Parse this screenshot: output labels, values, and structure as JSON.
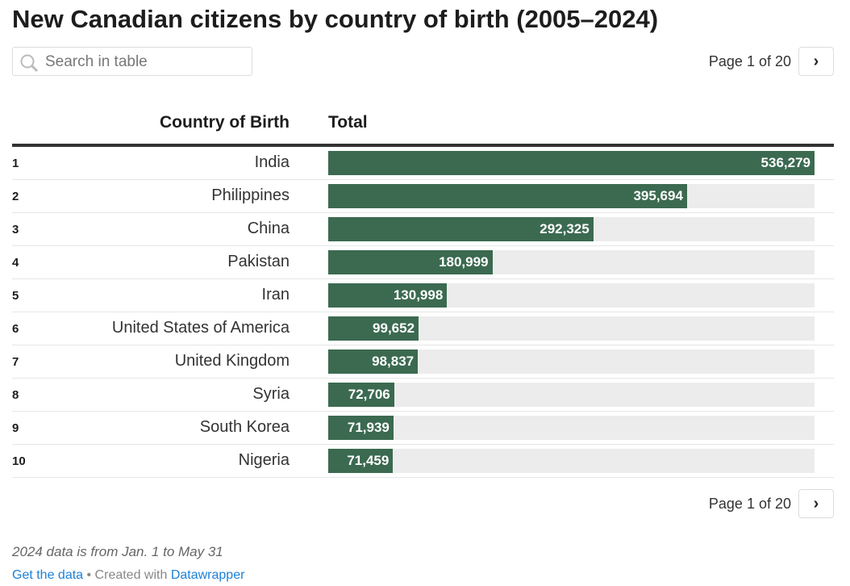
{
  "title": "New Canadian citizens by country of birth (2005–2024)",
  "search": {
    "placeholder": "Search in table"
  },
  "pagination": {
    "label": "Page 1 of 20",
    "next": "›"
  },
  "colors": {
    "bar": "#3b6a50",
    "track": "#ececec"
  },
  "chart_data": {
    "type": "table",
    "columns": [
      "Country of Birth",
      "Total"
    ],
    "max": 536279,
    "rows": [
      {
        "rank": "1",
        "country": "India",
        "value": 536279,
        "label": "536,279"
      },
      {
        "rank": "2",
        "country": "Philippines",
        "value": 395694,
        "label": "395,694"
      },
      {
        "rank": "3",
        "country": "China",
        "value": 292325,
        "label": "292,325"
      },
      {
        "rank": "4",
        "country": "Pakistan",
        "value": 180999,
        "label": "180,999"
      },
      {
        "rank": "5",
        "country": "Iran",
        "value": 130998,
        "label": "130,998"
      },
      {
        "rank": "6",
        "country": "United States of America",
        "value": 99652,
        "label": "99,652"
      },
      {
        "rank": "7",
        "country": "United Kingdom",
        "value": 98837,
        "label": "98,837"
      },
      {
        "rank": "8",
        "country": "Syria",
        "value": 72706,
        "label": "72,706"
      },
      {
        "rank": "9",
        "country": "South Korea",
        "value": 71939,
        "label": "71,939"
      },
      {
        "rank": "10",
        "country": "Nigeria",
        "value": 71459,
        "label": "71,459"
      }
    ]
  },
  "note": "2024 data is from Jan. 1 to May 31",
  "footer": {
    "get_data": "Get the data",
    "sep": " • Created with ",
    "datawrapper": "Datawrapper"
  }
}
